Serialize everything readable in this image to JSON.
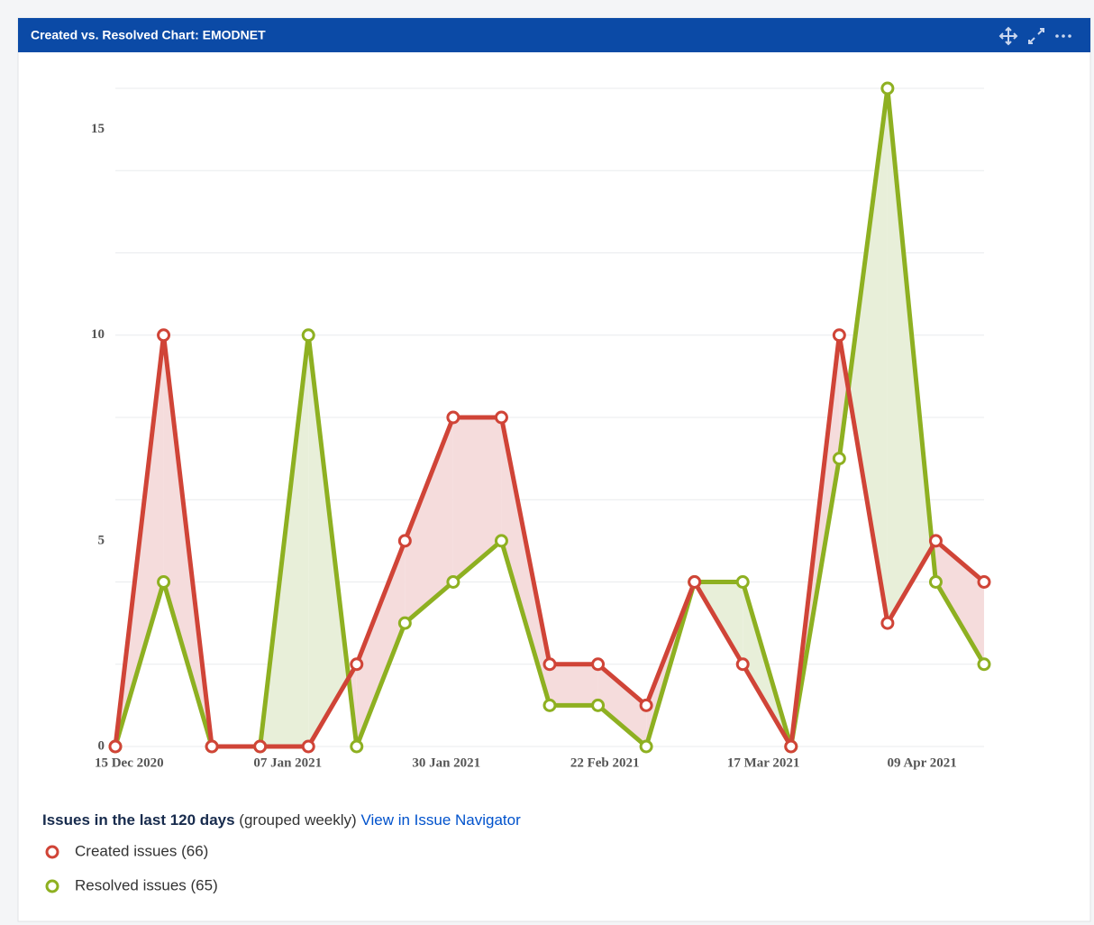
{
  "header": {
    "title": "Created vs. Resolved Chart: EMODNET"
  },
  "chart_data": {
    "type": "line",
    "x": [
      "2020-12-13",
      "2020-12-20",
      "2020-12-27",
      "2021-01-03",
      "2021-01-10",
      "2021-01-17",
      "2021-01-24",
      "2021-01-31",
      "2021-02-07",
      "2021-02-14",
      "2021-02-21",
      "2021-02-28",
      "2021-03-07",
      "2021-03-14",
      "2021-03-21",
      "2021-03-28",
      "2021-04-04",
      "2021-04-11",
      "2021-04-18"
    ],
    "series": [
      {
        "name": "Created issues (66)",
        "color": "#d04437",
        "fill": "#f5dcdc",
        "values": [
          0,
          10,
          0,
          0,
          0,
          2,
          5,
          8,
          8,
          2,
          2,
          1,
          4,
          2,
          0,
          10,
          3,
          5,
          4
        ]
      },
      {
        "name": "Resolved issues (65)",
        "color": "#8eb021",
        "fill": "#e8efd9",
        "values": [
          0,
          4,
          0,
          0,
          10,
          0,
          3,
          4,
          5,
          1,
          1,
          0,
          4,
          4,
          0,
          7,
          16,
          4,
          2
        ]
      }
    ],
    "xlim": [
      "2020-12-13",
      "2021-04-18"
    ],
    "xticks": [
      {
        "value": "2020-12-15",
        "label": "15 Dec 2020"
      },
      {
        "value": "2021-01-07",
        "label": "07 Jan 2021"
      },
      {
        "value": "2021-01-30",
        "label": "30 Jan 2021"
      },
      {
        "value": "2021-02-22",
        "label": "22 Feb 2021"
      },
      {
        "value": "2021-03-17",
        "label": "17 Mar 2021"
      },
      {
        "value": "2021-04-09",
        "label": "09 Apr 2021"
      }
    ],
    "ylim": [
      0,
      16
    ],
    "yticks": [
      0,
      5,
      10,
      15
    ],
    "grid_lines": [
      0,
      2,
      4,
      6,
      8,
      10,
      12,
      14,
      16
    ],
    "grid": true
  },
  "legend": {
    "title": "Issues in the last 120 days",
    "note": "(grouped weekly)",
    "link": "View in Issue Navigator"
  }
}
